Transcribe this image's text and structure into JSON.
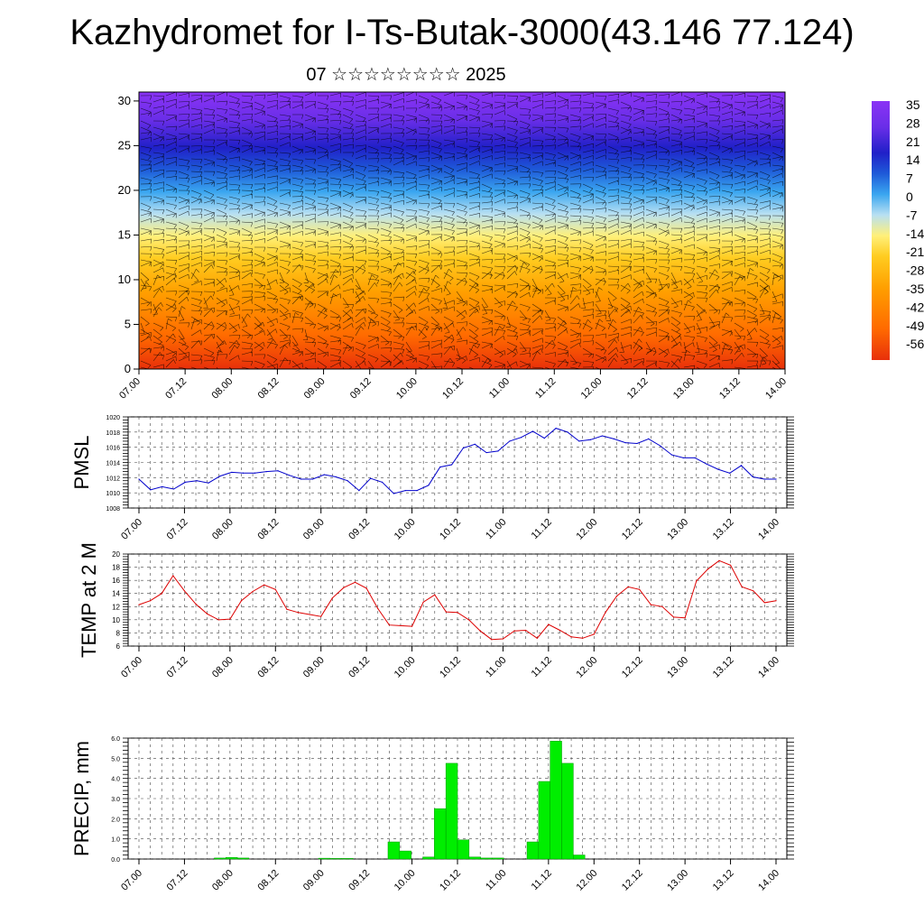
{
  "header": {
    "title": "Kazhydromet for I-Ts-Butak-3000(43.146 77.124)",
    "subtitle": "07 ☆☆☆☆☆☆☆☆ 2025"
  },
  "colorbar": {
    "labels": [
      "35",
      "28",
      "21",
      "14",
      "7",
      "0",
      "-7",
      "-14",
      "-21",
      "-28",
      "-35",
      "-42",
      "-49",
      "-56"
    ],
    "colors": [
      "#f3b6b6",
      "#e02020",
      "#ff6a00",
      "#ffa500",
      "#ffd700",
      "#fff06a",
      "#9fd6ef",
      "#1e90ff",
      "#2828d8",
      "#7d28f0"
    ]
  },
  "chart_data": [
    {
      "type": "heatmap",
      "title": "",
      "x_ticks": [
        "07.00",
        "07.12",
        "08.00",
        "08.12",
        "09.00",
        "09.12",
        "10.00",
        "10.12",
        "11.00",
        "11.12",
        "12.00",
        "12.12",
        "13.00",
        "13.12",
        "14.00"
      ],
      "y_ticks": [
        "0",
        "5",
        "10",
        "15",
        "20",
        "25",
        "30"
      ],
      "ylim": [
        0,
        31
      ],
      "grid": false
    },
    {
      "type": "line",
      "ylabel": "PMSL",
      "x_ticks": [
        "07.00",
        "07.12",
        "08.00",
        "08.12",
        "09.00",
        "09.12",
        "10.00",
        "10.12",
        "11.00",
        "11.12",
        "12.00",
        "12.12",
        "13.00",
        "13.12",
        "14.00"
      ],
      "y_ticks": [
        "1008",
        "1010",
        "1012",
        "1014",
        "1016",
        "1018",
        "1020"
      ],
      "ylim": [
        1008,
        1020
      ],
      "color": "#0000cc",
      "grid": true,
      "values": [
        1011.8,
        1010.4,
        1010.8,
        1010.5,
        1011.4,
        1011.6,
        1011.3,
        1012.2,
        1012.7,
        1012.6,
        1012.6,
        1012.8,
        1012.9,
        1012.3,
        1011.8,
        1011.8,
        1012.4,
        1012.1,
        1011.6,
        1010.3,
        1011.9,
        1011.4,
        1009.9,
        1010.3,
        1010.3,
        1011.0,
        1013.4,
        1013.7,
        1015.9,
        1016.4,
        1015.3,
        1015.5,
        1016.8,
        1017.3,
        1018.1,
        1017.2,
        1018.5,
        1018.0,
        1016.8,
        1017.0,
        1017.5,
        1017.1,
        1016.6,
        1016.5,
        1017.1,
        1016.2,
        1015.0,
        1014.6,
        1014.6,
        1013.8,
        1013.1,
        1012.6,
        1013.6,
        1012.1,
        1011.8,
        1011.8
      ]
    },
    {
      "type": "line",
      "ylabel": "TEMP at 2 M",
      "x_ticks": [
        "07.00",
        "07.12",
        "08.00",
        "08.12",
        "09.00",
        "09.12",
        "10.00",
        "10.12",
        "11.00",
        "11.12",
        "12.00",
        "12.12",
        "13.00",
        "13.12",
        "14.00"
      ],
      "y_ticks": [
        "6",
        "8",
        "10",
        "12",
        "14",
        "16",
        "18",
        "20"
      ],
      "ylim": [
        6,
        20
      ],
      "color": "#dd0000",
      "grid": true,
      "values": [
        12.3,
        12.9,
        14.0,
        16.7,
        14.4,
        12.4,
        10.9,
        10.0,
        10.1,
        12.9,
        14.3,
        15.3,
        14.6,
        11.6,
        11.1,
        10.8,
        10.5,
        13.3,
        14.9,
        15.7,
        14.8,
        11.7,
        9.2,
        9.1,
        9.0,
        12.7,
        13.8,
        11.2,
        11.1,
        10.0,
        8.3,
        7.0,
        7.1,
        8.3,
        8.4,
        7.2,
        9.3,
        8.4,
        7.4,
        7.2,
        7.8,
        11.1,
        13.6,
        15.0,
        14.6,
        12.3,
        12.0,
        10.4,
        10.3,
        15.9,
        17.7,
        19.0,
        18.3,
        15.0,
        14.4,
        12.6,
        12.9
      ]
    },
    {
      "type": "bar",
      "ylabel": "PRECIP, mm",
      "x_ticks": [
        "07.00",
        "07.12",
        "08.00",
        "08.12",
        "09.00",
        "09.12",
        "10.00",
        "10.12",
        "11.00",
        "11.12",
        "12.00",
        "12.12",
        "13.00",
        "13.12",
        "14.00"
      ],
      "y_ticks": [
        "0.0",
        "1.0",
        "2.0",
        "3.0",
        "4.0",
        "5.0",
        "6.0"
      ],
      "ylim": [
        0,
        6
      ],
      "color": "#00ee00",
      "grid": true,
      "values": [
        0,
        0,
        0,
        0,
        0,
        0,
        0,
        0.05,
        0.08,
        0.05,
        0,
        0,
        0,
        0,
        0,
        0,
        0.04,
        0.03,
        0.03,
        0,
        0,
        0,
        0.85,
        0.4,
        0,
        0.1,
        2.5,
        4.75,
        0.95,
        0.1,
        0.05,
        0.05,
        0,
        0,
        0.85,
        3.85,
        5.85,
        4.75,
        0.2,
        0,
        0,
        0,
        0,
        0,
        0,
        0,
        0,
        0,
        0,
        0,
        0,
        0,
        0,
        0,
        0,
        0
      ]
    }
  ]
}
